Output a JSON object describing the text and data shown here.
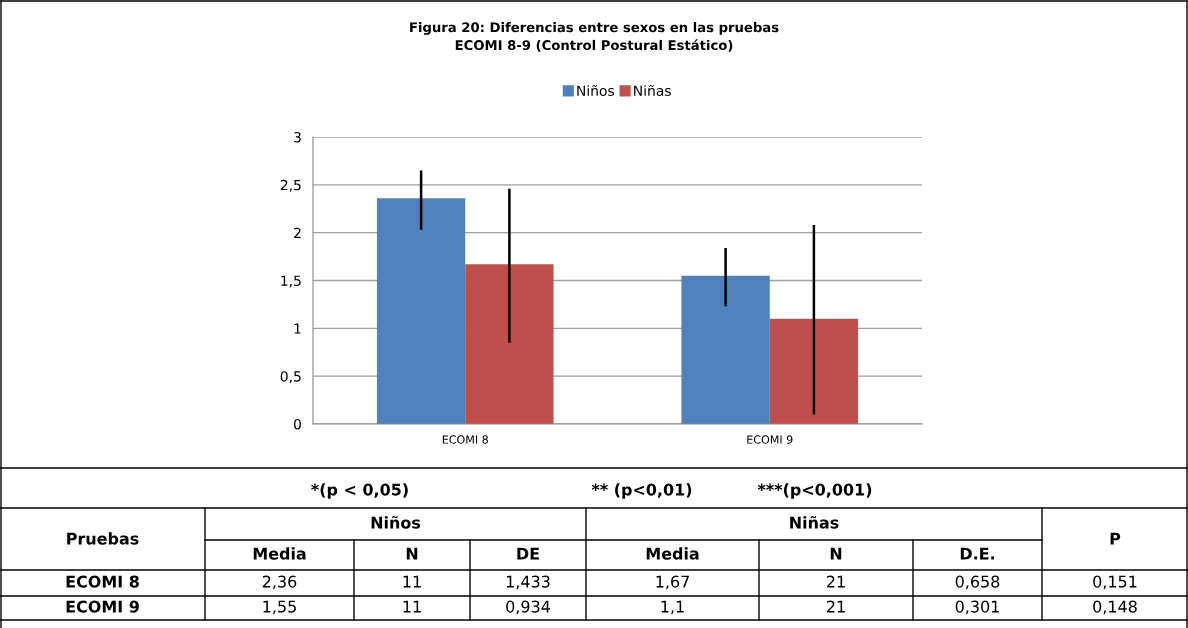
{
  "chart_data": {
    "type": "bar",
    "title": "Figura 20: Diferencias entre sexos en las pruebas\nECOMI 8-9 (Control Postural Estático)",
    "categories": [
      "ECOMI 8",
      "ECOMI 9"
    ],
    "series": [
      {
        "name": "Niños",
        "color": "#4f81bd",
        "values": [
          2.36,
          1.55
        ],
        "errors": [
          [
            2.03,
            2.65
          ],
          [
            1.23,
            1.84
          ]
        ]
      },
      {
        "name": "Niñas",
        "color": "#c0504d",
        "values": [
          1.67,
          1.1
        ],
        "errors": [
          [
            0.85,
            2.46
          ],
          [
            0.1,
            2.08
          ]
        ]
      }
    ],
    "ylim": [
      0,
      3
    ],
    "yticks": [
      0,
      {
        "value": 0.5,
        "label": "0,5"
      },
      1,
      {
        "value": 1.5,
        "label": "1,5"
      },
      2,
      {
        "value": 2.5,
        "label": "2,5"
      },
      3
    ],
    "grid": "y",
    "legend": "top",
    "annotations": [
      "*(p < 0,05)",
      "** (p<0,01)",
      "***(p<0,001)",
      "Pruebas",
      "Niños",
      "Niñas",
      "P",
      "Media",
      "N",
      "DE",
      "Media",
      "N",
      "D.E.",
      "ECOMI 8",
      "2,36",
      "11",
      "1,433",
      "1,67",
      "21",
      "0,658",
      "0,151",
      "ECOMI 9",
      "1,55",
      "11",
      "0,934",
      "1,1",
      "21",
      "0,301",
      "0,148"
    ]
  }
}
